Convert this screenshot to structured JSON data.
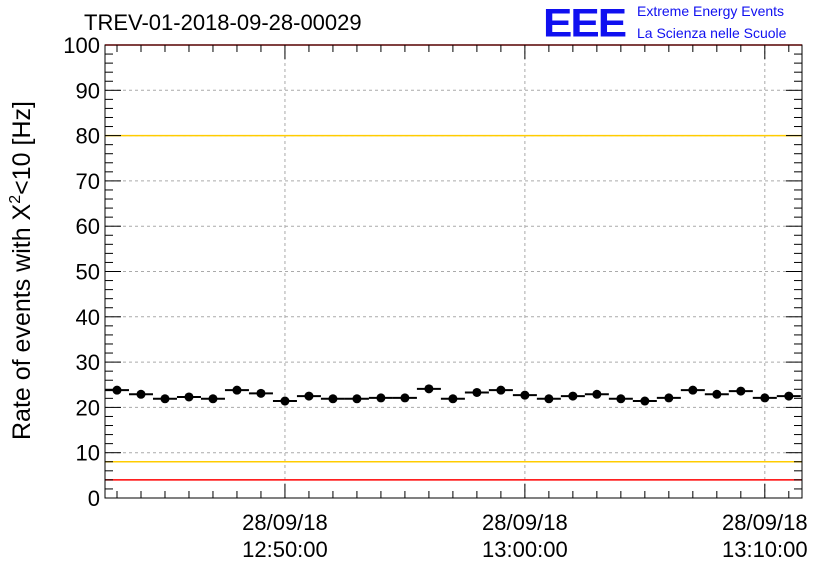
{
  "chart_data": {
    "type": "scatter",
    "title": "TREV-01-2018-09-28-00029",
    "xlabel": "",
    "ylabel": "Rate of events with X2<10 [Hz]",
    "ylabel_parts": {
      "pre": "Rate of events with X",
      "sup": "2",
      "post": "<10 [Hz]"
    },
    "ylim": [
      0,
      100
    ],
    "y_ticks": [
      0,
      10,
      20,
      30,
      40,
      50,
      60,
      70,
      80,
      90,
      100
    ],
    "x_unit": "minutes after 12:42:30",
    "xlim": [
      0,
      29.05
    ],
    "x_ticks": [
      {
        "pos": 7.5,
        "date": "28/09/18",
        "time": "12:50:00"
      },
      {
        "pos": 17.5,
        "date": "28/09/18",
        "time": "13:00:00"
      },
      {
        "pos": 27.5,
        "date": "28/09/18",
        "time": "13:10:00"
      }
    ],
    "grid": true,
    "x": [
      0.5,
      1.5,
      2.5,
      3.5,
      4.5,
      5.5,
      6.5,
      7.5,
      8.5,
      9.5,
      10.5,
      11.5,
      12.5,
      13.5,
      14.5,
      15.5,
      16.5,
      17.5,
      18.5,
      19.5,
      20.5,
      21.5,
      22.5,
      23.5,
      24.5,
      25.5,
      26.5,
      27.5,
      28.5
    ],
    "values": [
      23.8,
      22.9,
      21.9,
      22.3,
      21.9,
      23.8,
      23.1,
      21.4,
      22.5,
      21.9,
      21.9,
      22.1,
      22.1,
      24.1,
      21.9,
      23.3,
      23.8,
      22.7,
      21.9,
      22.5,
      22.9,
      21.9,
      21.4,
      22.1,
      23.8,
      22.9,
      23.6,
      22.1,
      22.5
    ],
    "x_error": 0.5,
    "threshold_lines": [
      {
        "value": 4,
        "color": "#ff0000"
      },
      {
        "value": 8,
        "color": "#ffcc00"
      },
      {
        "value": 80,
        "color": "#ffcc00"
      },
      {
        "value": 100,
        "color": "#ff0000"
      }
    ]
  },
  "logo": {
    "text": "EEE",
    "line1": "Extreme Energy Events",
    "line2": "La Scienza nelle Scuole"
  }
}
